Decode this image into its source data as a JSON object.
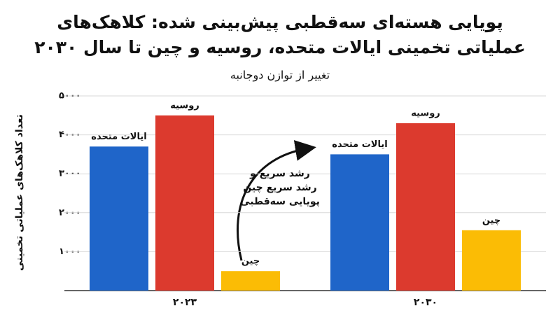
{
  "chart_data": {
    "type": "bar",
    "title": "پویایی هسته‌ای سه‌قطبی پیش‌بینی شده: کلاهک‌های عملیاتی تخمینی ایالات متحده، روسیه و چین تا سال ۲۰۳۰",
    "subtitle": "تغییر از توازن دوجانبه",
    "y_label": "تعداد کلاهک‌های عملیاتی تخمینی",
    "annotation": [
      "رشد سریع و",
      "رشد سریع چین",
      "پویایی سه‌قطبی"
    ],
    "categories": [
      "۲۰۲۳",
      "۲۰۳۰"
    ],
    "series": [
      {
        "name": "ایالات متحده",
        "color": "#1f65c9",
        "values": [
          3700,
          3500
        ]
      },
      {
        "name": "روسیه",
        "color": "#dc3a2e",
        "values": [
          4500,
          4300
        ]
      },
      {
        "name": "چین",
        "color": "#fbbc05",
        "values": [
          500,
          1550
        ]
      }
    ],
    "ylim": [
      0,
      5000
    ],
    "yticks": [
      {
        "value": 1000,
        "label": "۱۰۰۰"
      },
      {
        "value": 2000,
        "label": "۲۰۰۰"
      },
      {
        "value": 3000,
        "label": "۳۰۰۰"
      },
      {
        "value": 4000,
        "label": "۴۰۰۰"
      },
      {
        "value": 5000,
        "label": "۵۰۰۰"
      }
    ],
    "grid": true
  }
}
